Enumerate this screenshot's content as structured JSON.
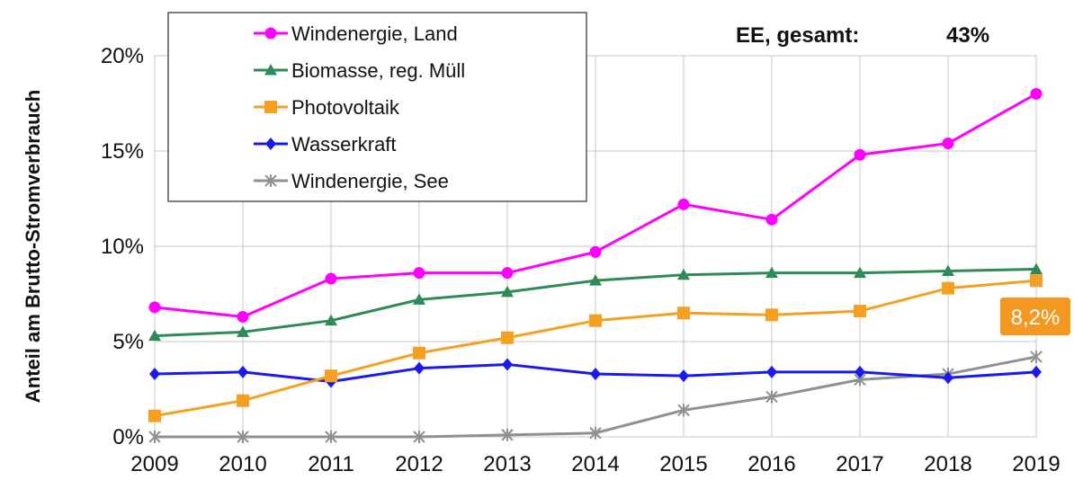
{
  "chart_data": {
    "type": "line",
    "title": "",
    "xlabel": "",
    "ylabel": "Anteil am Brutto-Stromverbrauch",
    "x": [
      2009,
      2010,
      2011,
      2012,
      2013,
      2014,
      2015,
      2016,
      2017,
      2018,
      2019
    ],
    "ylim": [
      0,
      20
    ],
    "yticks": [
      0,
      5,
      10,
      15,
      20
    ],
    "ytick_labels": [
      "0%",
      "5%",
      "10%",
      "15%",
      "20%"
    ],
    "xtick_labels": [
      "2009",
      "2010",
      "2011",
      "2012",
      "2013",
      "2014",
      "2015",
      "2016",
      "2017",
      "2018",
      "2019"
    ],
    "grid": true,
    "legend_position": "top-left",
    "series": [
      {
        "name": "Windenergie, Land",
        "color": "#ff00ff",
        "marker": "circle",
        "values": [
          6.8,
          6.3,
          8.3,
          8.6,
          8.6,
          9.7,
          12.2,
          11.4,
          14.8,
          15.4,
          18.0
        ]
      },
      {
        "name": "Biomasse, reg. Müll",
        "color": "#2e8b57",
        "marker": "triangle",
        "values": [
          5.3,
          5.5,
          6.1,
          7.2,
          7.6,
          8.2,
          8.5,
          8.6,
          8.6,
          8.7,
          8.8
        ]
      },
      {
        "name": "Photovoltaik",
        "color": "#f5a020",
        "marker": "square",
        "values": [
          1.1,
          1.9,
          3.2,
          4.4,
          5.2,
          6.1,
          6.5,
          6.4,
          6.6,
          7.8,
          8.2
        ]
      },
      {
        "name": "Wasserkraft",
        "color": "#1a1aee",
        "marker": "diamond",
        "values": [
          3.3,
          3.4,
          2.9,
          3.6,
          3.8,
          3.3,
          3.2,
          3.4,
          3.4,
          3.1,
          3.4
        ]
      },
      {
        "name": "Windenergie, See",
        "color": "#909090",
        "marker": "star",
        "values": [
          0.0,
          0.0,
          0.0,
          0.0,
          0.1,
          0.2,
          1.4,
          2.1,
          3.0,
          3.3,
          4.2
        ]
      }
    ],
    "annotations": {
      "summary_label": "EE, gesamt:",
      "summary_value": "43%",
      "callout": {
        "text": "8,2%",
        "color": "#f39820",
        "series_index": 2,
        "x": 2019,
        "y": 8.2
      }
    }
  }
}
